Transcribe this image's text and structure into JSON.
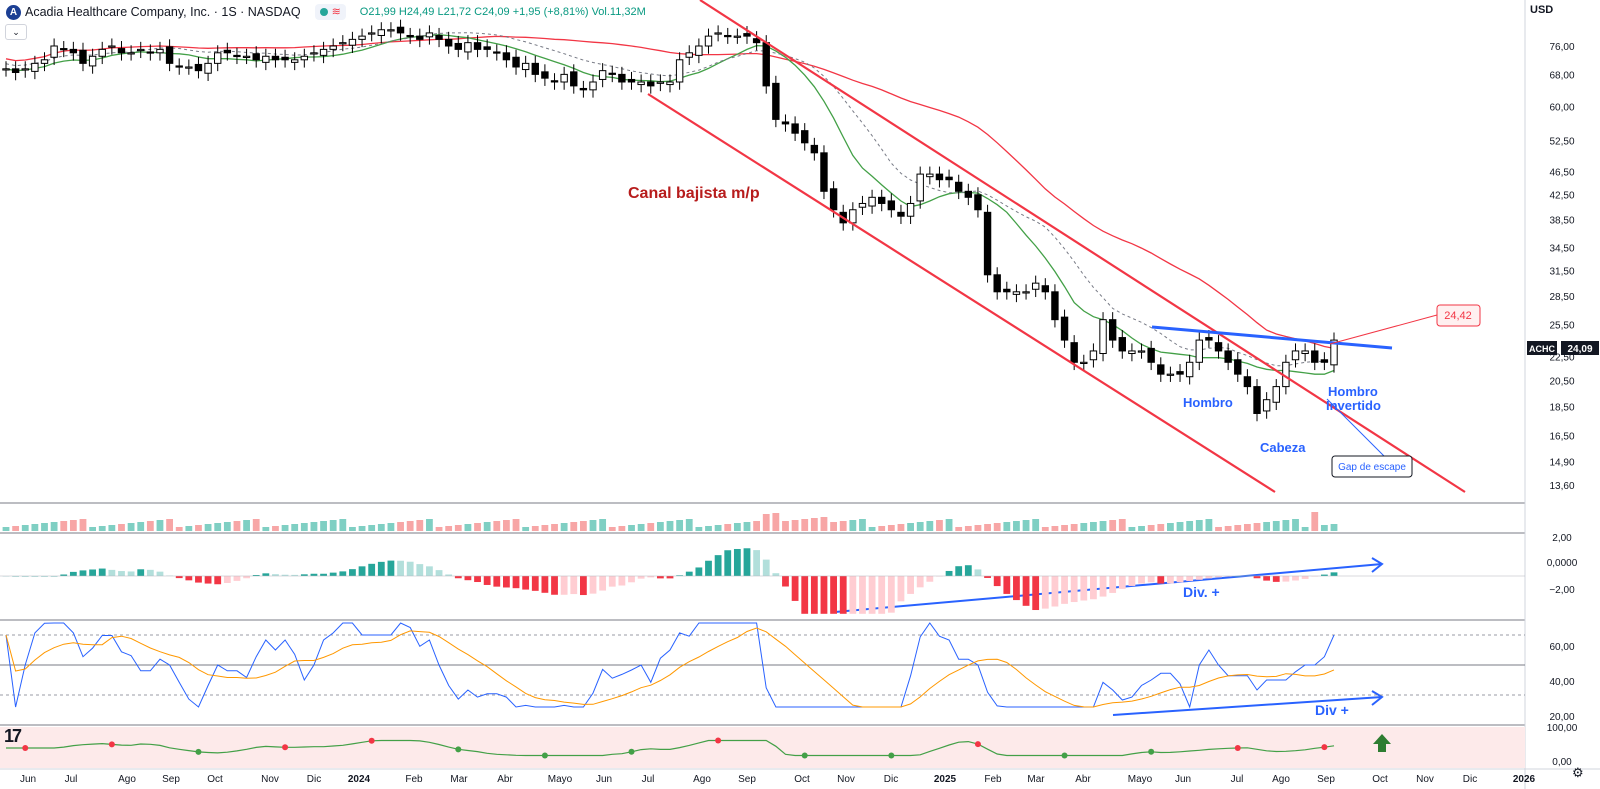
{
  "header": {
    "logo_letter": "A",
    "title": "Acadia Healthcare Company, Inc. · 1S · NASDAQ",
    "ohlc_text": "O21,99 H24,49 L21,72 C24,09 +1,95 (+8,81%) Vol.11,32M",
    "currency": "USD"
  },
  "colors": {
    "up": "#089981",
    "down": "#000000",
    "sma_green": "#43a047",
    "sma_red": "#f23645",
    "blue": "#2962ff",
    "rsi_line": "#2962ff",
    "rsi_ma": "#ff9800"
  },
  "chart_data": {
    "type": "candlestick",
    "price_axis_ticks": [
      "76,00",
      "68,00",
      "60,00",
      "52,50",
      "46,50",
      "42,50",
      "38,50",
      "34,50",
      "31,50",
      "28,50",
      "25,50",
      "22,50",
      "20,50",
      "18,50",
      "16,50",
      "14,90",
      "13,60"
    ],
    "macd_axis_ticks": [
      "2,00",
      "0,0000",
      "−2,00"
    ],
    "rsi_axis_ticks": [
      "60,00",
      "40,00",
      "20,00"
    ],
    "osc_axis_ticks": [
      "100,00",
      "0,00"
    ],
    "x_ticks": [
      "Jun",
      "Jul",
      "Ago",
      "Sep",
      "Oct",
      "Nov",
      "Dic",
      "2024",
      "Feb",
      "Mar",
      "Abr",
      "Mayo",
      "Jun",
      "Jul",
      "Ago",
      "Sep",
      "Oct",
      "Nov",
      "Dic",
      "2025",
      "Feb",
      "Mar",
      "Abr",
      "Mayo",
      "Jun",
      "Jul",
      "Ago",
      "Sep",
      "Oct",
      "Nov",
      "Dic",
      "2026"
    ],
    "last_price": "24,09",
    "symbol": "ACHC",
    "annotations": {
      "channel": "Canal bajista m/p",
      "shoulder": "Hombro",
      "head": "Cabeza",
      "inv_shoulder_1": "Hombro",
      "inv_shoulder_2": "Invertido",
      "gap": "Gap de escape",
      "target": "24,42",
      "macd_div": "Div. +",
      "rsi_div": "Div +"
    },
    "closes": [
      69.5,
      68.5,
      69.5,
      71,
      72,
      76,
      75,
      74,
      71,
      73,
      75,
      76,
      74,
      74,
      75,
      74,
      75,
      71,
      70,
      70,
      69,
      71,
      74,
      74,
      73,
      73,
      72,
      73,
      72,
      72,
      72,
      73,
      74,
      75,
      76,
      77,
      78,
      79,
      80,
      81,
      81,
      80,
      79,
      78,
      80,
      78,
      76,
      75,
      77,
      75,
      75,
      74,
      72,
      70,
      71,
      68,
      67,
      66,
      68,
      65,
      64,
      66,
      69,
      68,
      66,
      66,
      66,
      65,
      66,
      66,
      72,
      74,
      76,
      79,
      80,
      79,
      79,
      79,
      77,
      65,
      57,
      56,
      54,
      52,
      50,
      43,
      40,
      38,
      40,
      41,
      42,
      41,
      40,
      39,
      41,
      46,
      46,
      45,
      45,
      43,
      42,
      40,
      31,
      29,
      29,
      29,
      29,
      30,
      29,
      26,
      24,
      22,
      22,
      23,
      26,
      24,
      23,
      23,
      23,
      22,
      21,
      21,
      21,
      22,
      24,
      24,
      23,
      22,
      21,
      20,
      18,
      19,
      20,
      22,
      23,
      23,
      22,
      22,
      24
    ]
  }
}
